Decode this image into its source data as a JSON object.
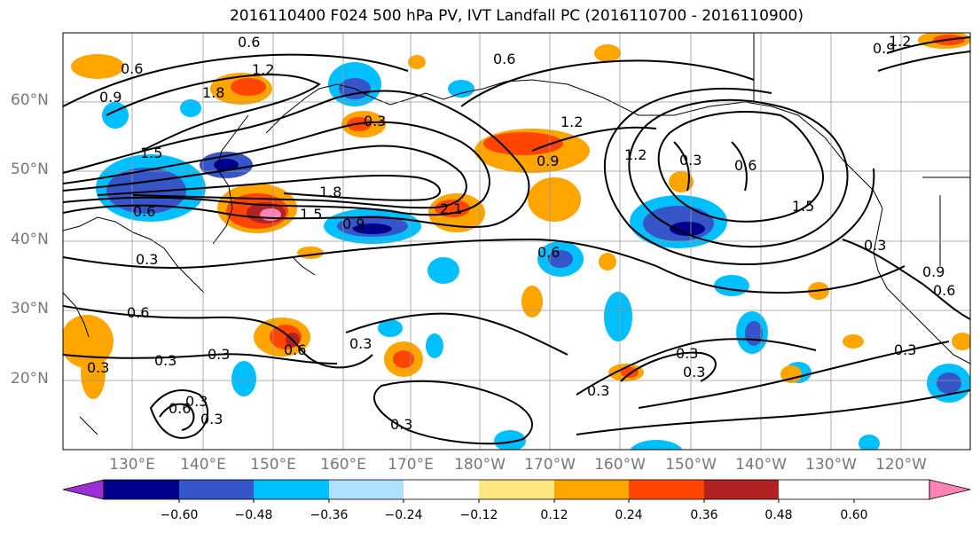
{
  "title": "2016110400 F024 500 hPa PV, IVT Landfall PC (2016110700 - 2016110900)",
  "lat_labels": [
    "60°N",
    "50°N",
    "40°N",
    "30°N",
    "20°N"
  ],
  "lon_labels": [
    "130°E",
    "140°E",
    "150°E",
    "160°E",
    "170°E",
    "180°W",
    "170°W",
    "160°W",
    "150°W",
    "140°W",
    "130°W",
    "120°W"
  ],
  "colorbar": {
    "ticks": [
      "−0.60",
      "−0.48",
      "−0.36",
      "−0.24",
      "−0.12",
      "0.12",
      "0.24",
      "0.36",
      "0.48",
      "0.60"
    ],
    "colors": [
      "#9b30d9",
      "#00008b",
      "#3655c8",
      "#00bfff",
      "#b0e0ff",
      "#ffffff",
      "#ffe680",
      "#ffa500",
      "#ff4500",
      "#b22222",
      "#ff82b4"
    ]
  },
  "contour_labels": [
    "0.6",
    "0.6",
    "0.9",
    "1.8",
    "1.2",
    "0.3",
    "0.6",
    "0.9",
    "1.2",
    "0.9",
    "0.3",
    "0.6",
    "1.2",
    "1.5",
    "0.3",
    "1.5",
    "0.6",
    "1.8",
    "1.5",
    "0.9",
    "2.1",
    "0.3",
    "0.6",
    "0.3",
    "0.6",
    "0.3",
    "0.3",
    "0.6",
    "0.6",
    "0.3",
    "0.3",
    "0.3",
    "0.3",
    "0.3",
    "0.9",
    "0.6",
    "0.3",
    "0.3",
    "0.3",
    "1.2"
  ]
}
